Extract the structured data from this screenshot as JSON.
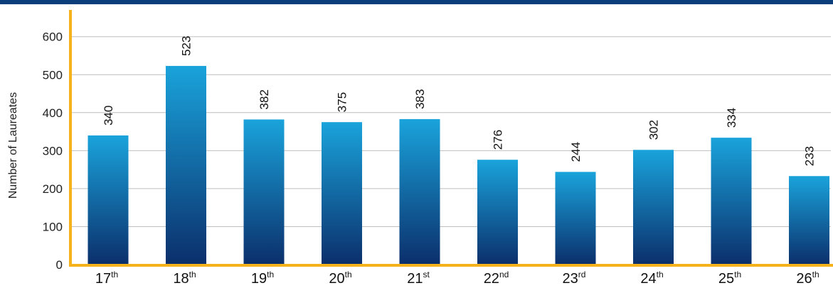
{
  "chart_data": {
    "type": "bar",
    "categories": [
      {
        "num": "17",
        "suffix": "th"
      },
      {
        "num": "18",
        "suffix": "th"
      },
      {
        "num": "19",
        "suffix": "th"
      },
      {
        "num": "20",
        "suffix": "th"
      },
      {
        "num": "21",
        "suffix": "st"
      },
      {
        "num": "22",
        "suffix": "nd"
      },
      {
        "num": "23",
        "suffix": "rd"
      },
      {
        "num": "24",
        "suffix": "th"
      },
      {
        "num": "25",
        "suffix": "th"
      },
      {
        "num": "26",
        "suffix": "th"
      }
    ],
    "values": [
      340,
      523,
      382,
      375,
      383,
      276,
      244,
      302,
      334,
      233
    ],
    "ylabel": "Number of Laureates",
    "ylim": [
      0,
      650
    ],
    "yticks": [
      0,
      100,
      200,
      300,
      400,
      500,
      600
    ],
    "grid": true,
    "colors": {
      "bar_top": "#1aa3db",
      "bar_bottom": "#0b2f6b",
      "axis": "#f6b21b",
      "grid": "#bfbfbf",
      "top_bar": "#0a3f7c"
    }
  }
}
